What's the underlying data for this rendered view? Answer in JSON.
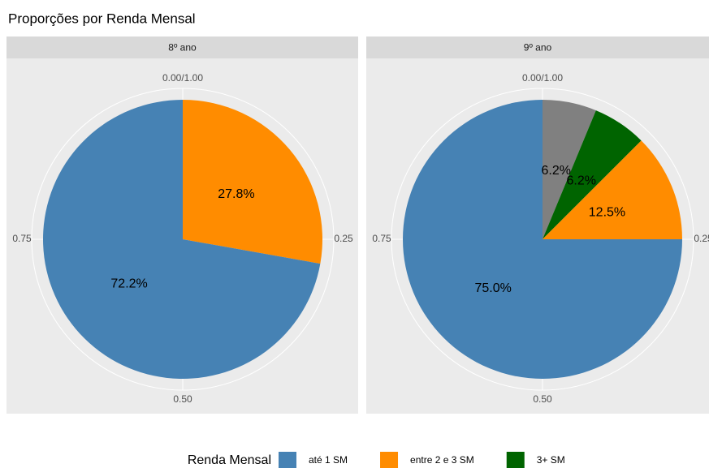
{
  "chart_data": {
    "type": "pie",
    "title": "Proporções por Renda Mensal",
    "legend_title": "Renda Mensal",
    "categories": [
      null,
      "3+ SM",
      "entre 2 e 3 SM",
      "até 1 SM"
    ],
    "colors": [
      "#808080",
      "#006400",
      "#ff8c00",
      "#4682b4"
    ],
    "facets": [
      {
        "name": "8º ano",
        "values": [
          0,
          0,
          27.8,
          72.2
        ],
        "value_labels": [
          null,
          null,
          "27.8%",
          "72.2%"
        ]
      },
      {
        "name": "9º ano",
        "values": [
          6.25,
          6.25,
          12.5,
          75
        ],
        "value_labels": [
          "6.2%",
          "6.2%",
          "12.5%",
          "75.0%"
        ]
      }
    ],
    "theta_ticks": [
      {
        "value": 0,
        "label": "0.00/1.00"
      },
      0.25,
      {
        "value": 0.5,
        "label": "0.50"
      },
      0.75
    ],
    "legend_position": "bottom"
  }
}
